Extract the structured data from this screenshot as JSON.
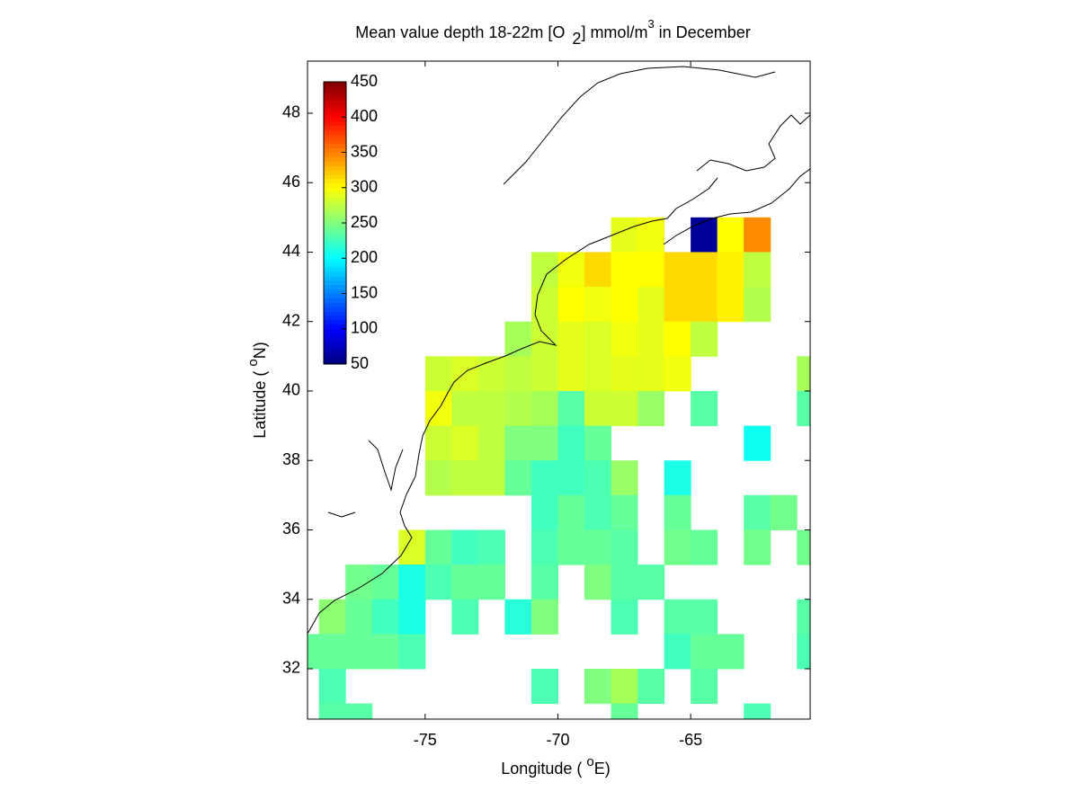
{
  "chart_data": {
    "type": "heatmap",
    "title": [
      "Mean value depth 18-22m [O",
      "2",
      "] mmol/m",
      "3",
      " in December"
    ],
    "x_label": [
      "Longitude (",
      "o",
      "E)"
    ],
    "y_label": [
      "Latitude (",
      "o",
      "N)"
    ],
    "xlim": [
      -79.43,
      -60.5
    ],
    "ylim": [
      30.55,
      49.5
    ],
    "xticks": [
      -75,
      -70,
      -65
    ],
    "yticks": [
      32,
      34,
      36,
      38,
      40,
      42,
      44,
      46,
      48
    ],
    "colormap": "jet",
    "clim": [
      50,
      450
    ],
    "cticks": [
      50,
      100,
      150,
      200,
      250,
      300,
      350,
      400,
      450
    ],
    "x": [
      -67.5,
      -66.5,
      -64.5,
      -63.5,
      -62.5,
      -70.5,
      -69.5,
      -68.5,
      -67.5,
      -66.5,
      -65.5,
      -64.5,
      -63.5,
      -62.5,
      -70.5,
      -69.5,
      -68.5,
      -67.5,
      -66.5,
      -65.5,
      -64.5,
      -63.5,
      -62.5,
      -71.5,
      -70.5,
      -69.5,
      -68.5,
      -67.5,
      -66.5,
      -65.5,
      -64.5,
      -74.5,
      -73.5,
      -72.5,
      -71.5,
      -70.5,
      -69.5,
      -68.5,
      -67.5,
      -66.5,
      -65.5,
      -60.5,
      -74.5,
      -73.5,
      -72.5,
      -71.5,
      -70.5,
      -69.5,
      -68.5,
      -67.5,
      -66.5,
      -64.5,
      -60.5,
      -74.5,
      -73.5,
      -72.5,
      -71.5,
      -70.5,
      -69.5,
      -68.5,
      -62.5,
      -74.5,
      -73.5,
      -72.5,
      -71.5,
      -70.5,
      -69.5,
      -68.5,
      -67.5,
      -65.5,
      -70.5,
      -69.5,
      -68.5,
      -67.5,
      -65.5,
      -62.5,
      -61.5,
      -75.5,
      -74.5,
      -73.5,
      -72.5,
      -70.5,
      -69.5,
      -68.5,
      -67.5,
      -65.5,
      -64.5,
      -62.5,
      -60.5,
      -77.5,
      -76.5,
      -75.5,
      -74.5,
      -73.5,
      -72.5,
      -70.5,
      -68.5,
      -67.5,
      -66.5,
      -78.5,
      -77.5,
      -76.5,
      -75.5,
      -73.5,
      -71.5,
      -70.5,
      -67.5,
      -65.5,
      -64.5,
      -60.5,
      -79.5,
      -78.5,
      -77.5,
      -76.5,
      -75.5,
      -65.5,
      -64.5,
      -63.5,
      -60.5,
      -78.5,
      -70.5,
      -68.5,
      -67.5,
      -66.5,
      -64.5,
      -78.5,
      -77.5,
      -67.5,
      -62.5
    ],
    "y": [
      44.5,
      44.5,
      44.5,
      44.5,
      44.5,
      43.5,
      43.5,
      43.5,
      43.5,
      43.5,
      43.5,
      43.5,
      43.5,
      43.5,
      42.5,
      42.5,
      42.5,
      42.5,
      42.5,
      42.5,
      42.5,
      42.5,
      42.5,
      41.5,
      41.5,
      41.5,
      41.5,
      41.5,
      41.5,
      41.5,
      41.5,
      40.5,
      40.5,
      40.5,
      40.5,
      40.5,
      40.5,
      40.5,
      40.5,
      40.5,
      40.5,
      40.5,
      39.5,
      39.5,
      39.5,
      39.5,
      39.5,
      39.5,
      39.5,
      39.5,
      39.5,
      39.5,
      39.5,
      38.5,
      38.5,
      38.5,
      38.5,
      38.5,
      38.5,
      38.5,
      38.5,
      37.5,
      37.5,
      37.5,
      37.5,
      37.5,
      37.5,
      37.5,
      37.5,
      37.5,
      36.5,
      36.5,
      36.5,
      36.5,
      36.5,
      36.5,
      36.5,
      35.5,
      35.5,
      35.5,
      35.5,
      35.5,
      35.5,
      35.5,
      35.5,
      35.5,
      35.5,
      35.5,
      35.5,
      34.5,
      34.5,
      34.5,
      34.5,
      34.5,
      34.5,
      34.5,
      34.5,
      34.5,
      34.5,
      33.5,
      33.5,
      33.5,
      33.5,
      33.5,
      33.5,
      33.5,
      33.5,
      33.5,
      33.5,
      33.5,
      32.5,
      32.5,
      32.5,
      32.5,
      32.5,
      32.5,
      32.5,
      32.5,
      32.5,
      31.5,
      31.5,
      31.5,
      31.5,
      31.5,
      31.5,
      30.5,
      30.5,
      30.5,
      30.5
    ],
    "values": [
      290,
      295,
      60,
      300,
      345,
      275,
      295,
      315,
      300,
      300,
      315,
      315,
      305,
      275,
      280,
      300,
      295,
      300,
      290,
      315,
      315,
      305,
      270,
      265,
      280,
      290,
      285,
      295,
      290,
      300,
      275,
      280,
      285,
      280,
      275,
      280,
      290,
      285,
      290,
      290,
      295,
      265,
      295,
      275,
      275,
      270,
      265,
      235,
      280,
      280,
      260,
      235,
      235,
      280,
      285,
      275,
      250,
      250,
      225,
      240,
      205,
      270,
      275,
      275,
      240,
      225,
      225,
      230,
      260,
      210,
      225,
      240,
      230,
      240,
      240,
      235,
      245,
      285,
      240,
      225,
      230,
      230,
      240,
      240,
      235,
      245,
      240,
      245,
      245,
      245,
      240,
      210,
      230,
      240,
      240,
      235,
      250,
      235,
      235,
      255,
      240,
      225,
      210,
      230,
      215,
      250,
      230,
      235,
      235,
      235,
      240,
      240,
      240,
      240,
      230,
      225,
      240,
      240,
      230,
      230,
      230,
      250,
      265,
      235,
      235,
      235,
      235,
      240,
      230
    ]
  }
}
